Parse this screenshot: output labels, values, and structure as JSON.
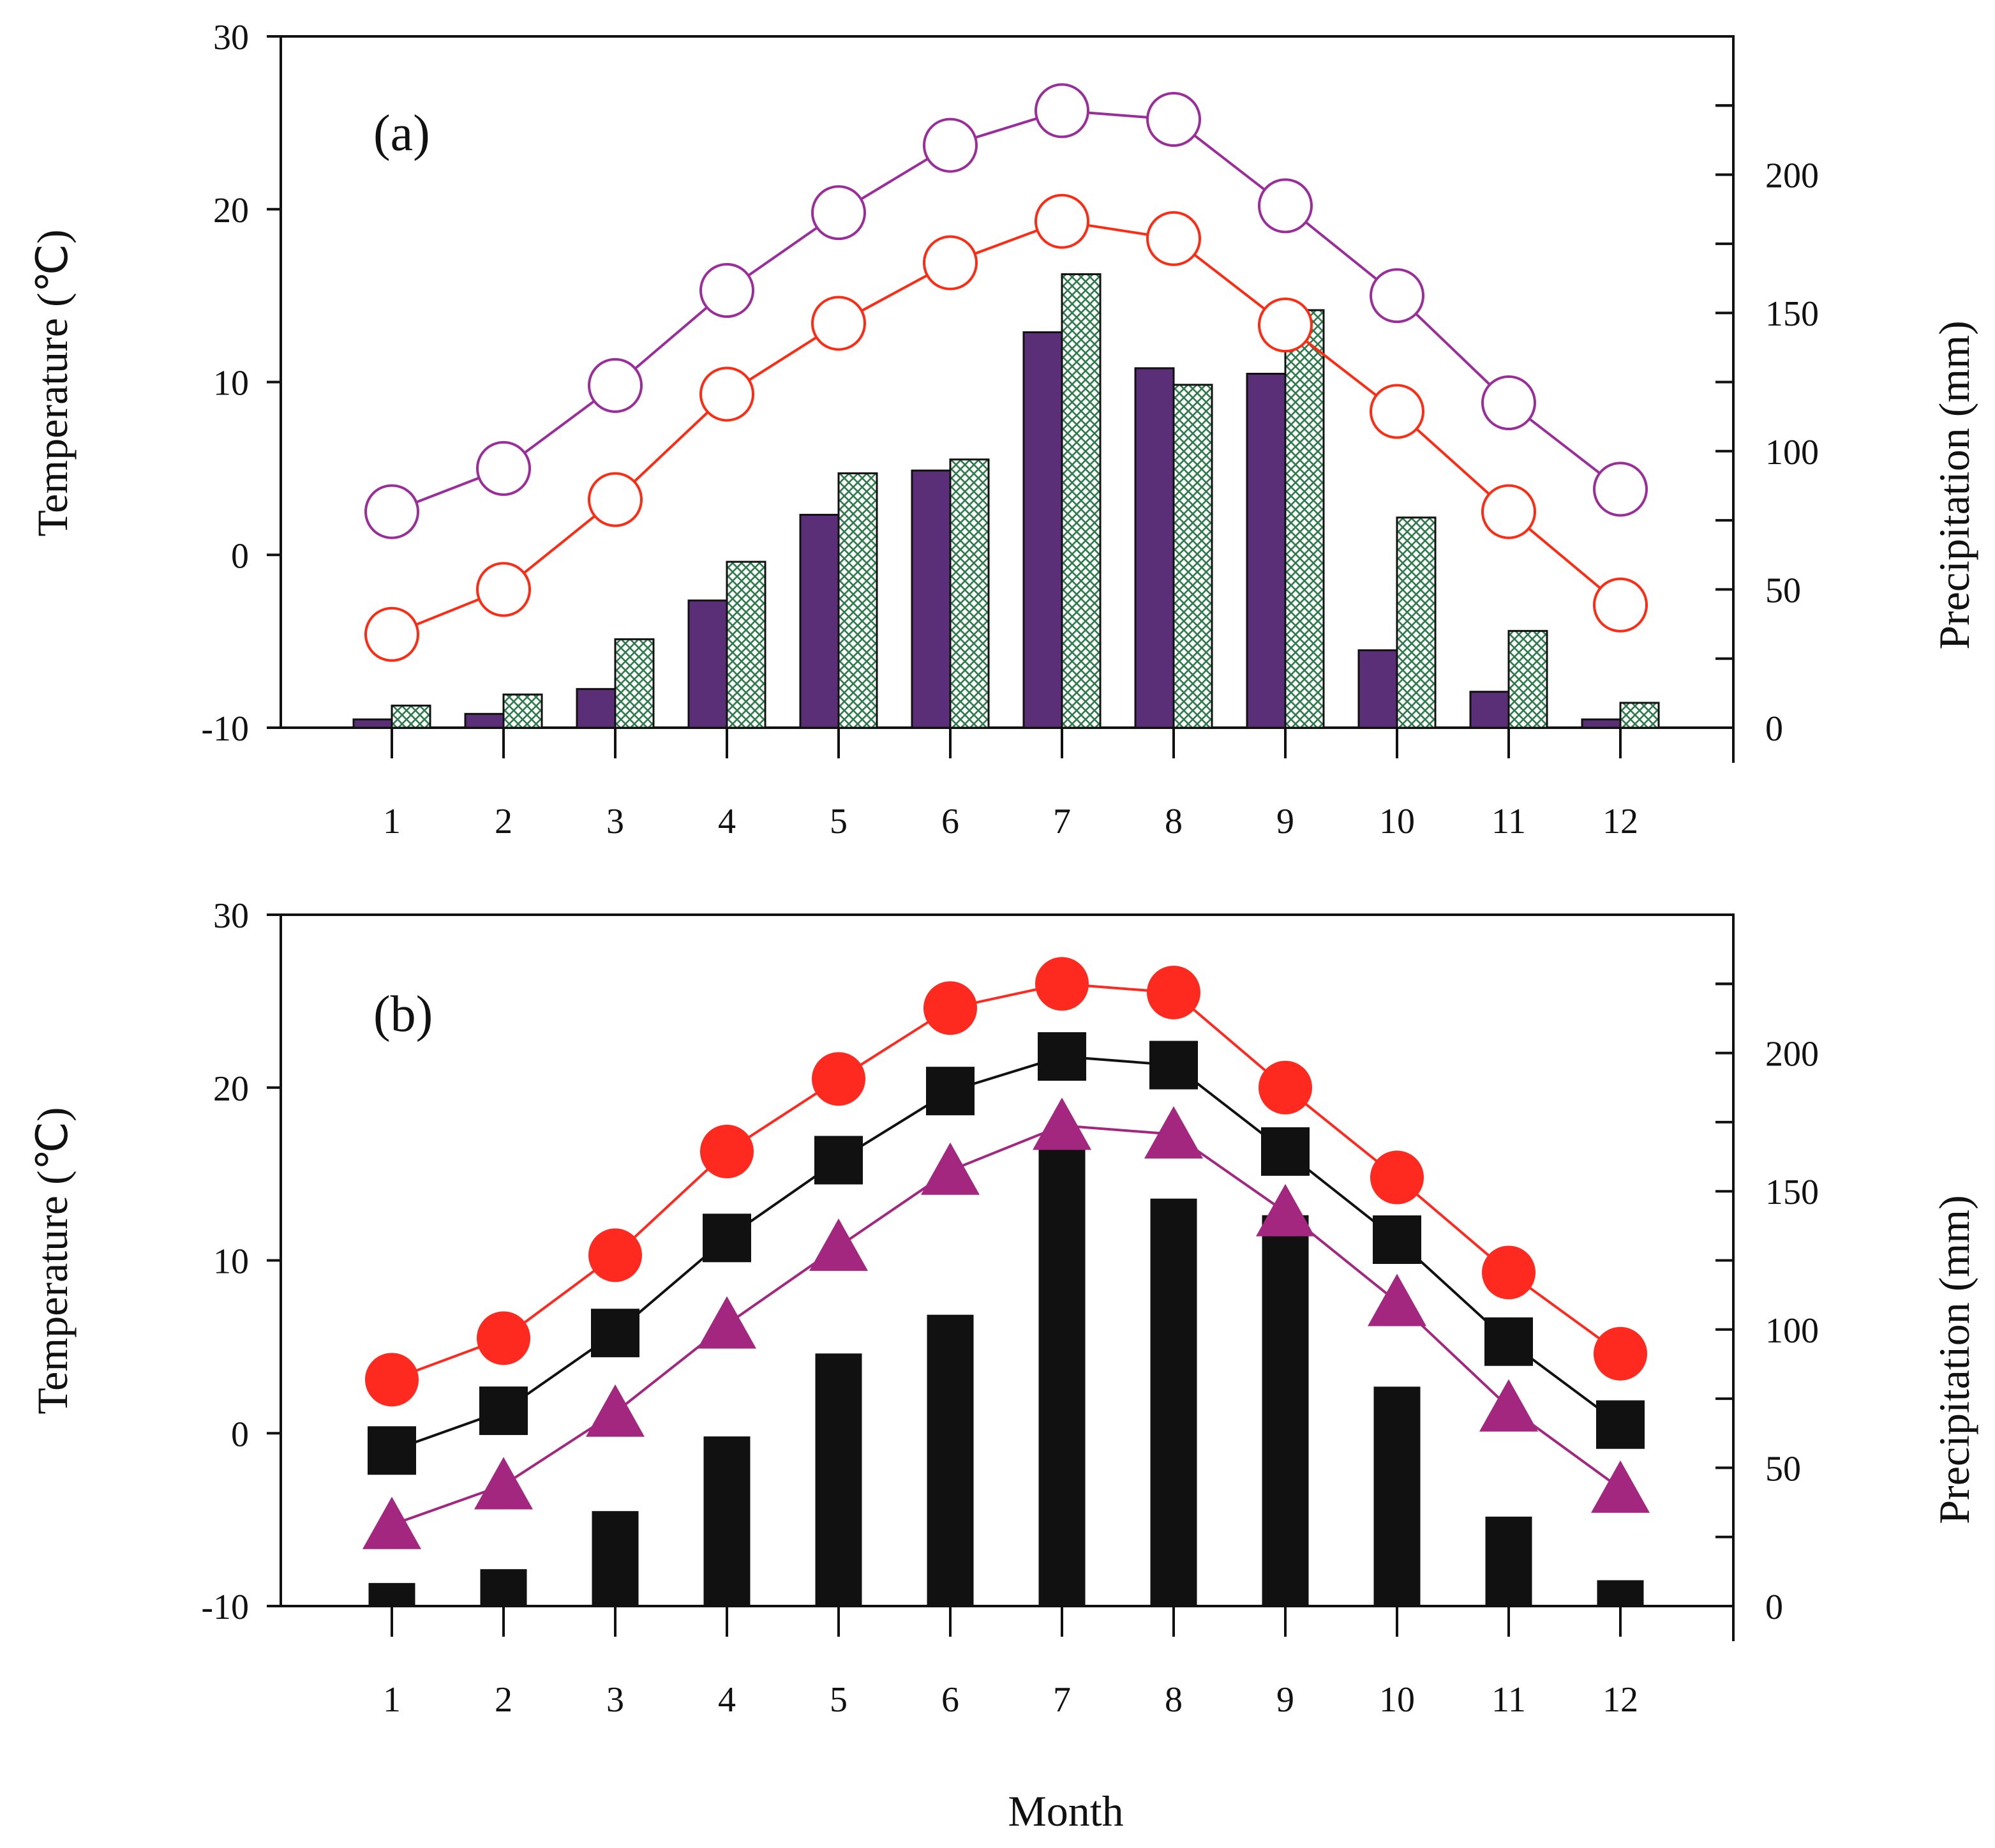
{
  "colors": {
    "purple_line": "#9b2d9b",
    "red_line": "#ff2a12",
    "red_fill": "#ff2a1f",
    "purple_fill": "#a3267f",
    "bar_purple": "#5b2f78",
    "bar_hatch": "#2e7a4a",
    "black": "#111111"
  },
  "chart_data": [
    {
      "type": "bar+line",
      "panel_label": "(a)",
      "xlabel": "",
      "ylabel_left": "Temperature (℃)",
      "ylabel_right": "Precipitation (mm)",
      "categories": [
        "1",
        "2",
        "3",
        "4",
        "5",
        "6",
        "7",
        "8",
        "9",
        "10",
        "11",
        "12"
      ],
      "ylim_left": [
        -10,
        30
      ],
      "ylim_right": [
        0,
        250
      ],
      "yticks_left": [
        "-10",
        "0",
        "10",
        "20",
        "30"
      ],
      "yticks_right": [
        "0",
        "50",
        "100",
        "150",
        "200"
      ],
      "grid": false,
      "lines": [
        {
          "marker": "open-circle",
          "color": "purple_line",
          "values": [
            2.5,
            5.0,
            9.8,
            15.3,
            19.8,
            23.7,
            25.7,
            25.2,
            20.2,
            15.0,
            8.8,
            3.8
          ]
        },
        {
          "marker": "open-circle",
          "color": "red_line",
          "values": [
            -4.6,
            -2.0,
            3.2,
            9.3,
            13.4,
            16.9,
            19.3,
            18.3,
            13.3,
            8.3,
            2.5,
            -2.9
          ]
        }
      ],
      "bars": [
        {
          "style": "solid",
          "color": "bar_purple",
          "values": [
            3,
            5,
            14,
            46,
            77,
            93,
            143,
            130,
            128,
            28,
            13,
            3
          ]
        },
        {
          "style": "hatched",
          "color": "bar_hatch",
          "values": [
            8,
            12,
            32,
            60,
            92,
            97,
            164,
            124,
            151,
            76,
            35,
            9
          ]
        }
      ]
    },
    {
      "type": "bar+line",
      "panel_label": "(b)",
      "xlabel": "Month",
      "ylabel_left": "Temperature (℃)",
      "ylabel_right": "Precipitation (mm)",
      "categories": [
        "1",
        "2",
        "3",
        "4",
        "5",
        "6",
        "7",
        "8",
        "9",
        "10",
        "11",
        "12"
      ],
      "ylim_left": [
        -10,
        30
      ],
      "ylim_right": [
        0,
        250
      ],
      "yticks_left": [
        "-10",
        "0",
        "10",
        "20",
        "30"
      ],
      "yticks_right": [
        "0",
        "50",
        "100",
        "150",
        "200"
      ],
      "grid": false,
      "lines": [
        {
          "marker": "filled-circle",
          "color": "red_fill",
          "values": [
            3.1,
            5.5,
            10.3,
            16.3,
            20.5,
            24.6,
            26.0,
            25.5,
            20.0,
            14.8,
            9.3,
            4.6
          ]
        },
        {
          "marker": "filled-square",
          "color": "black",
          "values": [
            -1.0,
            1.3,
            5.8,
            11.3,
            15.8,
            19.8,
            21.8,
            21.3,
            16.3,
            11.2,
            5.3,
            0.5
          ]
        },
        {
          "marker": "filled-triangle",
          "color": "purple_fill",
          "values": [
            -5.3,
            -3.0,
            1.2,
            6.3,
            10.8,
            15.2,
            17.8,
            17.3,
            12.8,
            7.6,
            1.5,
            -3.2
          ]
        }
      ],
      "bars": [
        {
          "style": "solid",
          "color": "black",
          "values": [
            8,
            13,
            34,
            61,
            91,
            105,
            168,
            147,
            141,
            79,
            32,
            9
          ]
        }
      ]
    }
  ]
}
